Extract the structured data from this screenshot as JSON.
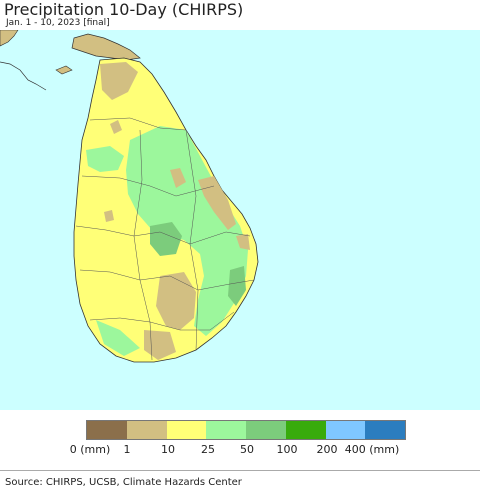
{
  "header": {
    "title": "Precipitation 10-Day (CHIRPS)",
    "subtitle": "Jan. 1 - 10, 2023 [final]"
  },
  "map": {
    "ocean_color": "#ccffff",
    "land_color": "#ffff77",
    "outside_color": "#ffffff"
  },
  "legend": {
    "colors": [
      "#8b6f4b",
      "#d2bf82",
      "#ffff77",
      "#9cf79c",
      "#7ccc7c",
      "#38ab0c",
      "#7fc7ff",
      "#2b7dbf"
    ],
    "tick_labels": [
      "0 (mm)",
      "1",
      "10",
      "25",
      "50",
      "100",
      "200",
      "400 (mm)"
    ]
  },
  "footer": {
    "source": "Source: CHIRPS, UCSB, Climate Hazards Center"
  }
}
